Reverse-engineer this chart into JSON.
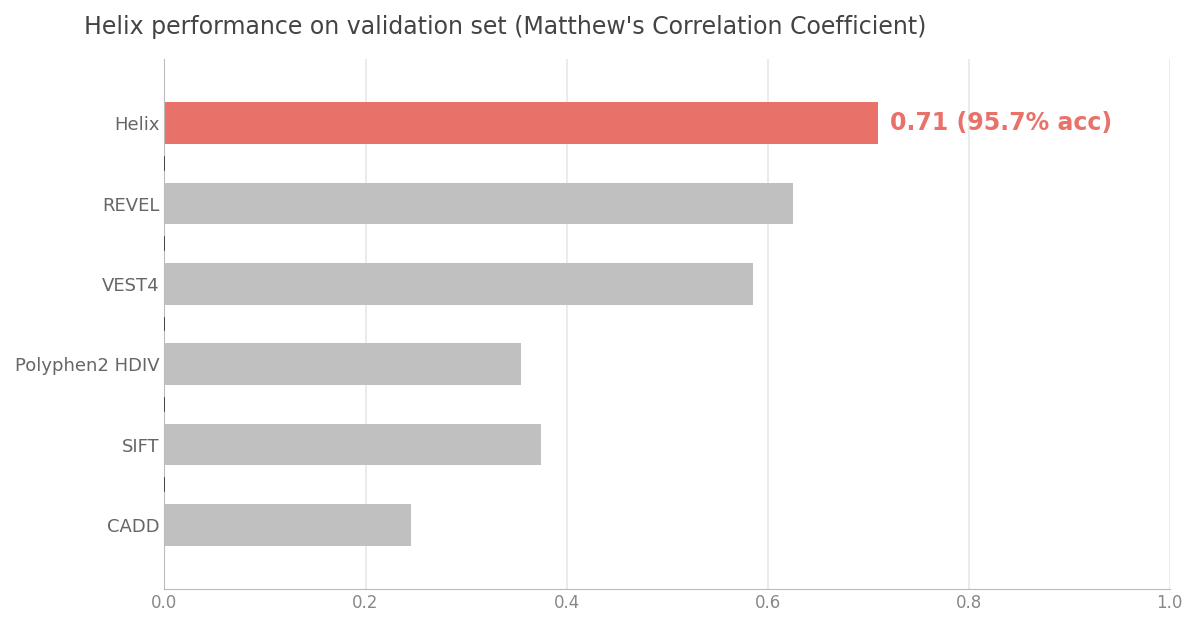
{
  "title": "Helix performance on validation set (Matthew's Correlation Coefficient)",
  "categories": [
    "CADD",
    "SIFT",
    "Polyphen2 HDIV",
    "VEST4",
    "REVEL",
    "Helix"
  ],
  "values": [
    0.245,
    0.375,
    0.355,
    0.585,
    0.625,
    0.71
  ],
  "bar_colors": [
    "#c0c0c0",
    "#c0c0c0",
    "#c0c0c0",
    "#c0c0c0",
    "#c0c0c0",
    "#e8716a"
  ],
  "annotation_text": "0.71 (95.7% acc)",
  "annotation_color": "#e8716a",
  "xlim": [
    0.0,
    1.0
  ],
  "xticks": [
    0.0,
    0.2,
    0.4,
    0.6,
    0.8,
    1.0
  ],
  "background_color": "#ffffff",
  "title_fontsize": 17,
  "label_fontsize": 13,
  "tick_fontsize": 12,
  "annotation_fontsize": 17,
  "bar_height": 0.52,
  "grid_color": "#e8e8e8",
  "grid_linewidth": 1.2,
  "separator_color": "#333333",
  "separator_linewidth": 1.0
}
